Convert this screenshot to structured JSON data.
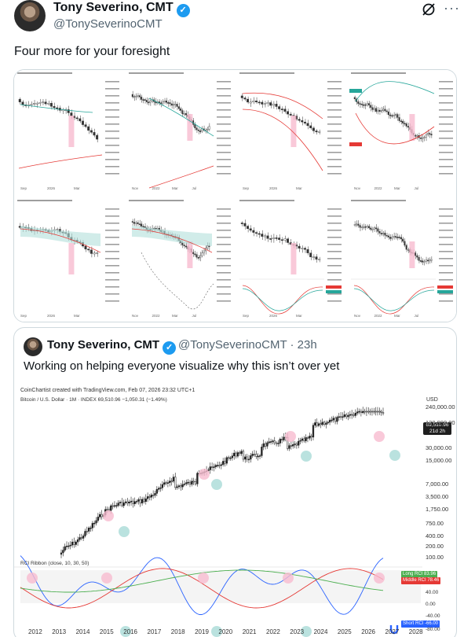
{
  "author": {
    "name": "Tony Severino, CMT",
    "handle": "@TonySeverinoCMT",
    "verified_icon": "verified-badge-icon",
    "verified_color": "#1d9bf0"
  },
  "header_icons": {
    "grok": "grok-icon",
    "more": "···"
  },
  "tweet_text": "Four more for your foresight",
  "quote": {
    "name": "Tony Severino, CMT",
    "handle": "@TonySeverinoCMT · 23h",
    "text": "Working on helping everyone visualize why this isn’t over yet",
    "chart": {
      "credit": "CoinChartist created with TradingView.com, Feb 07, 2026 23:32 UTC+1",
      "symbol": "Bitcoin / U.S. Dollar · 1M · INDEX  69,510.96  −1,050.31 (−1.49%)",
      "currency": "USD",
      "price_ticks": [
        "240,000.00",
        "120,000.00",
        "30,000.00",
        "15,000.00",
        "7,000.00",
        "3,500.00",
        "1,750.00",
        "750.00",
        "400.00",
        "200.00",
        "100.00"
      ],
      "price_tag": [
        "69,510.96",
        "21d 2h"
      ],
      "rci_label": "RCI Ribbon (close, 10, 30, 50)",
      "rci_tags": [
        {
          "label": "Long RCI",
          "value": "83.96",
          "color": "#4caf50"
        },
        {
          "label": "Middle RCI",
          "value": "78.46",
          "color": "#e53935"
        },
        {
          "label": "Short RCI",
          "value": "-66.00",
          "color": "#2962ff"
        }
      ],
      "rci_ticks": [
        "40.00",
        "0.00",
        "-40.00",
        "-80.00"
      ],
      "years": [
        "2012",
        "2013",
        "2014",
        "2015",
        "2016",
        "2017",
        "2018",
        "2019",
        "2020",
        "2021",
        "2022",
        "2023",
        "2024",
        "2025",
        "2026",
        "2027",
        "2028"
      ],
      "highlight_top_color": "#f8bbd0",
      "highlight_bottom_color": "#b2dfdb"
    }
  },
  "media_charts": [
    {
      "id": 1,
      "x_labels": [
        "Sep",
        "2026",
        "Mar"
      ]
    },
    {
      "id": 2,
      "x_labels": [
        "Nov",
        "2022",
        "Mar",
        "Jul"
      ]
    },
    {
      "id": 3,
      "x_labels": [
        "Sep",
        "2026",
        "Mar"
      ]
    },
    {
      "id": 4,
      "x_labels": [
        "Nov",
        "2022",
        "Mar",
        "Jul"
      ]
    },
    {
      "id": 5,
      "x_labels": [
        "Sep",
        "2026",
        "Mar"
      ]
    },
    {
      "id": 6,
      "x_labels": [
        "Nov",
        "2022",
        "Mar",
        "Jul"
      ]
    },
    {
      "id": 7,
      "x_labels": [
        "Sep",
        "2026",
        "Mar"
      ]
    },
    {
      "id": 8,
      "x_labels": [
        "Nov",
        "2022",
        "Mar",
        "Jul"
      ]
    }
  ]
}
